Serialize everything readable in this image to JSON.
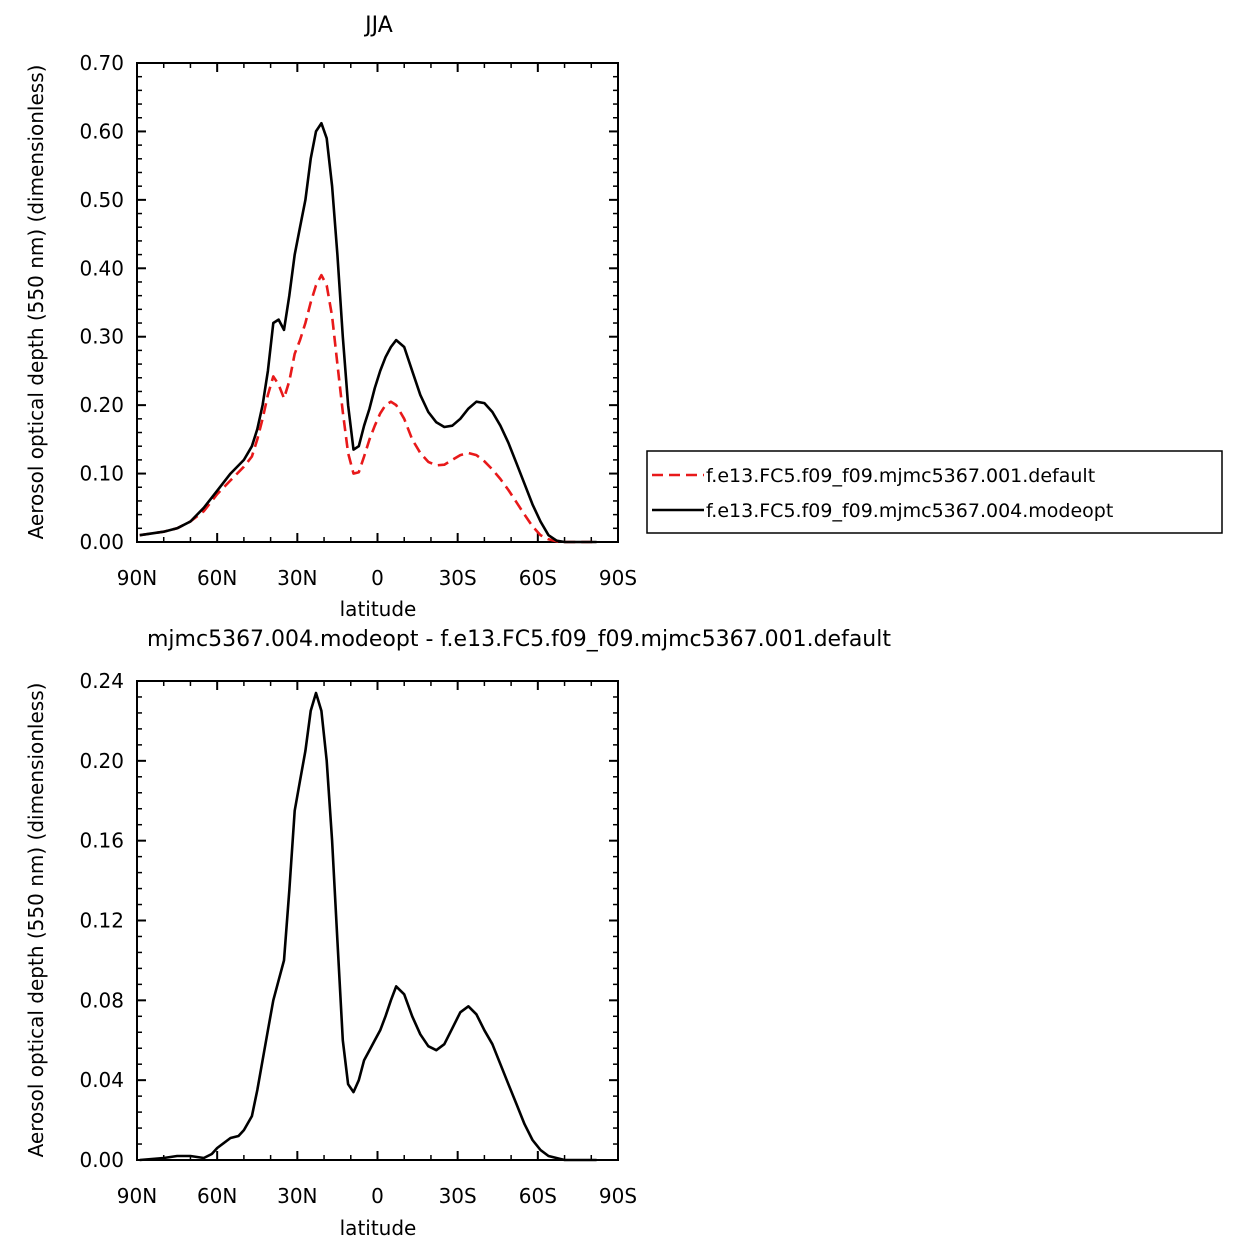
{
  "chart_data": [
    {
      "type": "line",
      "title": "JJA",
      "xlabel": "latitude",
      "ylabel": "Aerosol optical depth (550 nm) (dimensionless)",
      "xlim": [
        90,
        -90
      ],
      "ylim": [
        0,
        0.7
      ],
      "x_ticks": [
        90,
        60,
        30,
        0,
        -30,
        -60,
        -90
      ],
      "x_tick_labels": [
        "90N",
        "60N",
        "30N",
        "0",
        "30S",
        "60S",
        "90S"
      ],
      "y_ticks": [
        0,
        0.1,
        0.2,
        0.3,
        0.4,
        0.5,
        0.6,
        0.7
      ],
      "y_tick_labels": [
        "0.00",
        "0.10",
        "0.20",
        "0.30",
        "0.40",
        "0.50",
        "0.60",
        "0.70"
      ],
      "legend_position": "right",
      "series": [
        {
          "name": "f.e13.FC5.f09_f09.mjmc5367.001.default",
          "color": "#e8191a",
          "dash": "dashed",
          "x": [
            89,
            80,
            75,
            70,
            65,
            60,
            55,
            50,
            47,
            45,
            43,
            41,
            39,
            37,
            35,
            33,
            31,
            29,
            27,
            25,
            23,
            21,
            19,
            17,
            15,
            13,
            11,
            9,
            7,
            5,
            3,
            1,
            -1,
            -3,
            -5,
            -7,
            -10,
            -13,
            -16,
            -19,
            -22,
            -25,
            -28,
            -31,
            -34,
            -37,
            -40,
            -43,
            -46,
            -49,
            -52,
            -55,
            -58,
            -61,
            -64,
            -67,
            -70,
            -73,
            -76,
            -79,
            -82
          ],
          "y": [
            0.01,
            0.015,
            0.02,
            0.03,
            0.045,
            0.07,
            0.09,
            0.11,
            0.125,
            0.15,
            0.18,
            0.215,
            0.242,
            0.23,
            0.21,
            0.235,
            0.275,
            0.295,
            0.32,
            0.35,
            0.375,
            0.39,
            0.375,
            0.33,
            0.26,
            0.19,
            0.13,
            0.1,
            0.102,
            0.125,
            0.15,
            0.17,
            0.188,
            0.2,
            0.205,
            0.2,
            0.18,
            0.15,
            0.13,
            0.117,
            0.112,
            0.113,
            0.12,
            0.127,
            0.13,
            0.127,
            0.118,
            0.106,
            0.092,
            0.076,
            0.058,
            0.04,
            0.023,
            0.01,
            0.004,
            0.001,
            0.0,
            0.0,
            0.0,
            0.0,
            0.0
          ]
        },
        {
          "name": "f.e13.FC5.f09_f09.mjmc5367.004.modeopt",
          "color": "#000000",
          "dash": "solid",
          "x": [
            89,
            80,
            75,
            70,
            65,
            60,
            55,
            50,
            47,
            45,
            43,
            41,
            39,
            37,
            35,
            33,
            31,
            29,
            27,
            25,
            23,
            21,
            19,
            17,
            15,
            13,
            11,
            9,
            7,
            5,
            3,
            1,
            -1,
            -3,
            -5,
            -7,
            -10,
            -13,
            -16,
            -19,
            -22,
            -25,
            -28,
            -31,
            -34,
            -37,
            -40,
            -43,
            -46,
            -49,
            -52,
            -55,
            -58,
            -61,
            -64,
            -67,
            -70,
            -73,
            -76,
            -79,
            -82
          ],
          "y": [
            0.01,
            0.015,
            0.02,
            0.03,
            0.05,
            0.075,
            0.1,
            0.12,
            0.14,
            0.165,
            0.2,
            0.25,
            0.32,
            0.325,
            0.31,
            0.36,
            0.42,
            0.46,
            0.5,
            0.56,
            0.6,
            0.612,
            0.59,
            0.52,
            0.42,
            0.3,
            0.2,
            0.135,
            0.14,
            0.17,
            0.195,
            0.225,
            0.25,
            0.27,
            0.285,
            0.295,
            0.285,
            0.25,
            0.215,
            0.19,
            0.175,
            0.168,
            0.17,
            0.18,
            0.195,
            0.205,
            0.203,
            0.19,
            0.17,
            0.145,
            0.115,
            0.085,
            0.055,
            0.03,
            0.01,
            0.002,
            0.0,
            0.0,
            0.0,
            0.0,
            0.0
          ]
        }
      ]
    },
    {
      "type": "line",
      "title": "mjmc5367.004.modeopt - f.e13.FC5.f09_f09.mjmc5367.001.default",
      "xlabel": "latitude",
      "ylabel": "Aerosol optical depth (550 nm) (dimensionless)",
      "xlim": [
        90,
        -90
      ],
      "ylim": [
        0,
        0.24
      ],
      "x_ticks": [
        90,
        60,
        30,
        0,
        -30,
        -60,
        -90
      ],
      "x_tick_labels": [
        "90N",
        "60N",
        "30N",
        "0",
        "30S",
        "60S",
        "90S"
      ],
      "y_ticks": [
        0,
        0.04,
        0.08,
        0.12,
        0.16,
        0.2,
        0.24
      ],
      "y_tick_labels": [
        "0.00",
        "0.04",
        "0.08",
        "0.12",
        "0.16",
        "0.20",
        "0.24"
      ],
      "series": [
        {
          "color": "#000000",
          "dash": "solid",
          "x": [
            89,
            80,
            75,
            70,
            65,
            62,
            60,
            55,
            52,
            50,
            47,
            45,
            43,
            41,
            39,
            37,
            35,
            33,
            31,
            29,
            27,
            25,
            23,
            21,
            19,
            17,
            15,
            13,
            11,
            9,
            7,
            5,
            3,
            1,
            -1,
            -3,
            -5,
            -7,
            -10,
            -13,
            -16,
            -19,
            -22,
            -25,
            -28,
            -31,
            -34,
            -37,
            -40,
            -43,
            -46,
            -49,
            -52,
            -55,
            -58,
            -61,
            -64,
            -67,
            -70,
            -73,
            -76,
            -79,
            -82
          ],
          "y": [
            0.0,
            0.001,
            0.002,
            0.002,
            0.001,
            0.003,
            0.006,
            0.011,
            0.012,
            0.015,
            0.022,
            0.035,
            0.05,
            0.065,
            0.08,
            0.09,
            0.1,
            0.135,
            0.175,
            0.19,
            0.205,
            0.225,
            0.234,
            0.225,
            0.2,
            0.16,
            0.11,
            0.06,
            0.038,
            0.034,
            0.04,
            0.05,
            0.055,
            0.06,
            0.065,
            0.072,
            0.08,
            0.087,
            0.083,
            0.072,
            0.063,
            0.057,
            0.055,
            0.058,
            0.066,
            0.074,
            0.077,
            0.073,
            0.065,
            0.058,
            0.048,
            0.038,
            0.028,
            0.018,
            0.01,
            0.005,
            0.002,
            0.001,
            0.0,
            0.0,
            0.0,
            0.0,
            0.0
          ]
        }
      ]
    }
  ]
}
